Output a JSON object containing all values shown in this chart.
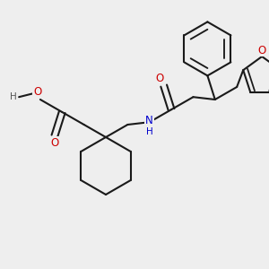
{
  "bg_color": "#eeeeee",
  "bond_color": "#1a1a1a",
  "bond_width": 1.5,
  "atom_colors": {
    "O": "#cc0000",
    "N": "#0000cc",
    "gray": "#555555"
  },
  "font_size_atom": 8.5,
  "font_size_H": 7.5
}
